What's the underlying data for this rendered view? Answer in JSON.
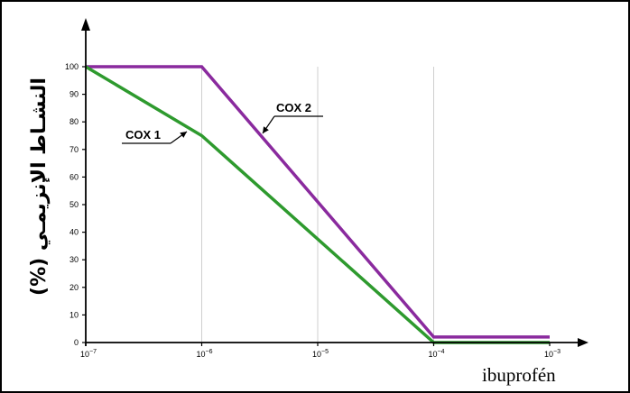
{
  "chart_data": {
    "type": "line",
    "xlabel": "ibuprofén",
    "ylabel": "النشـاط الإنزيمـي (%)",
    "x_scale": "log",
    "x_ticks": [
      {
        "base": "10",
        "exp": "−7",
        "value": 1e-07
      },
      {
        "base": "10",
        "exp": "−6",
        "value": 1e-06
      },
      {
        "base": "10",
        "exp": "−5",
        "value": 1e-05
      },
      {
        "base": "10",
        "exp": "−4",
        "value": 0.0001
      },
      {
        "base": "10",
        "exp": "−3",
        "value": 0.001
      }
    ],
    "y_ticks": [
      0,
      10,
      20,
      30,
      40,
      50,
      60,
      70,
      80,
      90,
      100
    ],
    "xlim": [
      1e-07,
      0.001
    ],
    "ylim": [
      0,
      100
    ],
    "series": [
      {
        "name": "COX 1",
        "color": "#2e9a2e",
        "points": [
          [
            1e-07,
            100
          ],
          [
            1e-06,
            75
          ],
          [
            0.0001,
            0
          ],
          [
            0.001,
            0
          ]
        ]
      },
      {
        "name": "COX 2",
        "color": "#8a2a9e",
        "points": [
          [
            1e-07,
            100
          ],
          [
            1e-06,
            100
          ],
          [
            0.0001,
            2
          ],
          [
            0.001,
            2
          ]
        ]
      }
    ],
    "vertical_guides": [
      1e-06,
      1e-05,
      0.0001
    ]
  }
}
